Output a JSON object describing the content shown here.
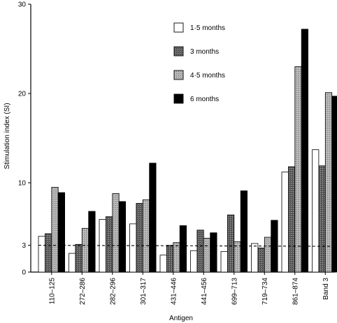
{
  "chart_data": {
    "type": "bar",
    "xlabel": "Antigen",
    "ylabel": "Stimulation index (SI)",
    "ylim": [
      0,
      30
    ],
    "yticks": [
      0,
      3,
      10,
      20,
      30
    ],
    "categories": [
      "110–125",
      "272–286",
      "282–296",
      "301–317",
      "431–446",
      "441–456",
      "699–713",
      "719–734",
      "861–874",
      "Band 3"
    ],
    "series": [
      {
        "name": "1·5 months",
        "fill": "#ffffff",
        "values": [
          4.0,
          2.1,
          5.9,
          5.4,
          1.9,
          2.4,
          2.3,
          3.2,
          11.2,
          13.7
        ]
      },
      {
        "name": "3 months",
        "fill": "#5a5a5a",
        "values": [
          4.3,
          3.1,
          6.2,
          7.7,
          3.0,
          4.7,
          6.4,
          2.7,
          11.8,
          11.9
        ]
      },
      {
        "name": "4·5 months",
        "fill": "#a6a6a6",
        "values": [
          9.5,
          4.9,
          8.8,
          8.1,
          3.3,
          3.8,
          3.4,
          3.9,
          23.0,
          20.1
        ]
      },
      {
        "name": "6 months",
        "fill": "#000000",
        "values": [
          8.9,
          6.8,
          7.9,
          12.2,
          5.2,
          4.4,
          9.1,
          5.8,
          27.2,
          19.7
        ]
      }
    ],
    "reference_line": {
      "value": 3,
      "style": "dashed"
    },
    "legend": "top-center"
  }
}
